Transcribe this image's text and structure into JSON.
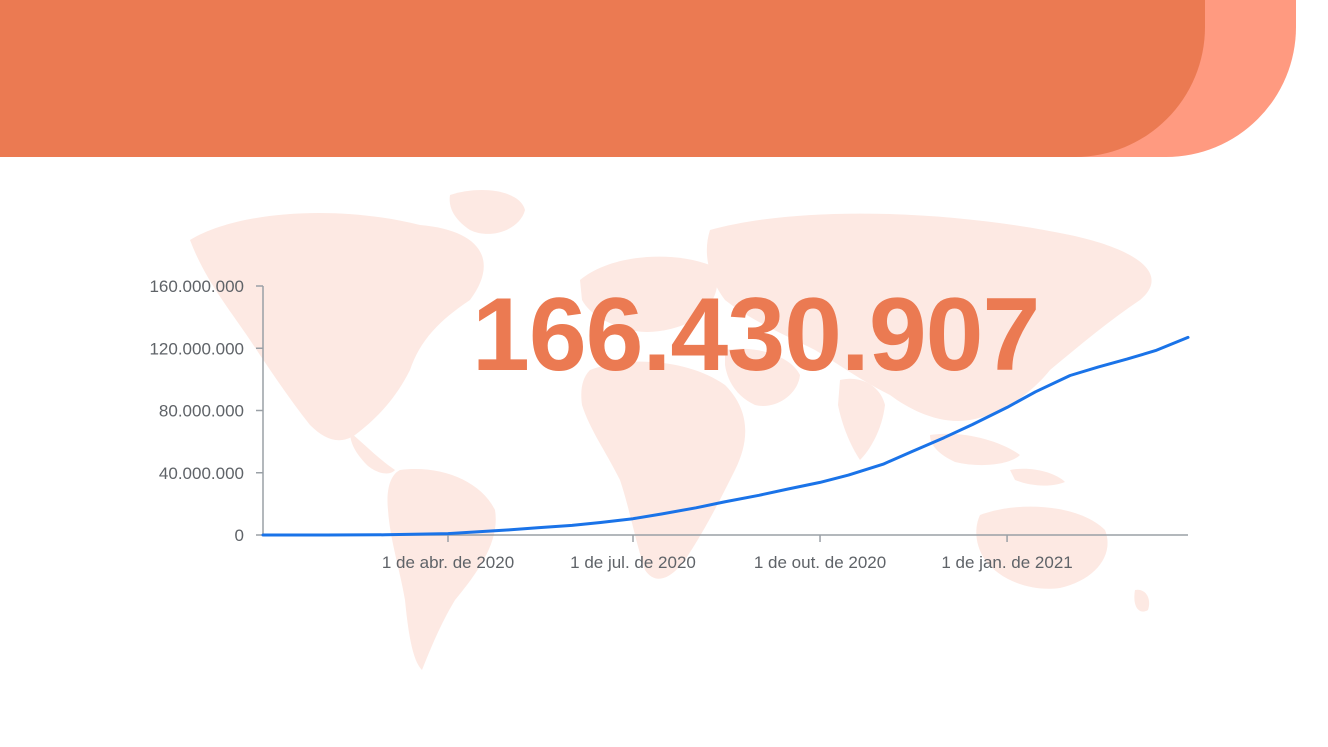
{
  "colors": {
    "banner_primary": "#EB7A52",
    "banner_secondary": "#FF9A80",
    "map_fill": "#FDE9E3",
    "line": "#1A73E8",
    "axis": "#9AA0A6",
    "tick_text": "#5F6368",
    "headline": "#EB7A52"
  },
  "decorations": {
    "background": "world-map",
    "banner": "orange-rounded-banner"
  },
  "headline": {
    "value": "166.430.907"
  },
  "chart_data": {
    "type": "line",
    "title": "",
    "xlabel": "",
    "ylabel": "",
    "ylim": [
      0,
      160000000
    ],
    "xlim": [
      "2020-01-01",
      "2021-03-31"
    ],
    "y_ticks": [
      {
        "value": 0,
        "label": "0"
      },
      {
        "value": 40000000,
        "label": "40.000.000"
      },
      {
        "value": 80000000,
        "label": "80.000.000"
      },
      {
        "value": 120000000,
        "label": "120.000.000"
      },
      {
        "value": 160000000,
        "label": "160.000.000"
      }
    ],
    "x_ticks": [
      {
        "value": "2020-04-01",
        "label": "1 de abr. de 2020"
      },
      {
        "value": "2020-07-01",
        "label": "1 de jul. de 2020"
      },
      {
        "value": "2020-10-01",
        "label": "1 de out. de 2020"
      },
      {
        "value": "2021-01-01",
        "label": "1 de jan. de 2021"
      }
    ],
    "grid": false,
    "legend": "none",
    "series": [
      {
        "x": [
          "2020-01-01",
          "2020-02-01",
          "2020-03-01",
          "2020-04-01",
          "2020-04-15",
          "2020-05-01",
          "2020-05-15",
          "2020-06-01",
          "2020-06-15",
          "2020-07-01",
          "2020-07-15",
          "2020-08-01",
          "2020-08-15",
          "2020-09-01",
          "2020-09-15",
          "2020-10-01",
          "2020-10-15",
          "2020-11-01",
          "2020-11-15",
          "2020-12-01",
          "2020-12-15",
          "2021-01-01",
          "2021-01-15",
          "2021-02-01",
          "2021-02-15",
          "2021-03-01",
          "2021-03-15",
          "2021-03-31"
        ],
        "values": [
          0,
          0,
          100000,
          900000,
          2000000,
          3300000,
          4600000,
          6200000,
          8000000,
          10500000,
          13500000,
          17500000,
          21300000,
          25500000,
          29500000,
          33800000,
          38500000,
          45500000,
          53500000,
          62500000,
          71000000,
          82000000,
          92000000,
          102500000,
          108000000,
          113000000,
          118500000,
          127000000
        ]
      }
    ]
  }
}
